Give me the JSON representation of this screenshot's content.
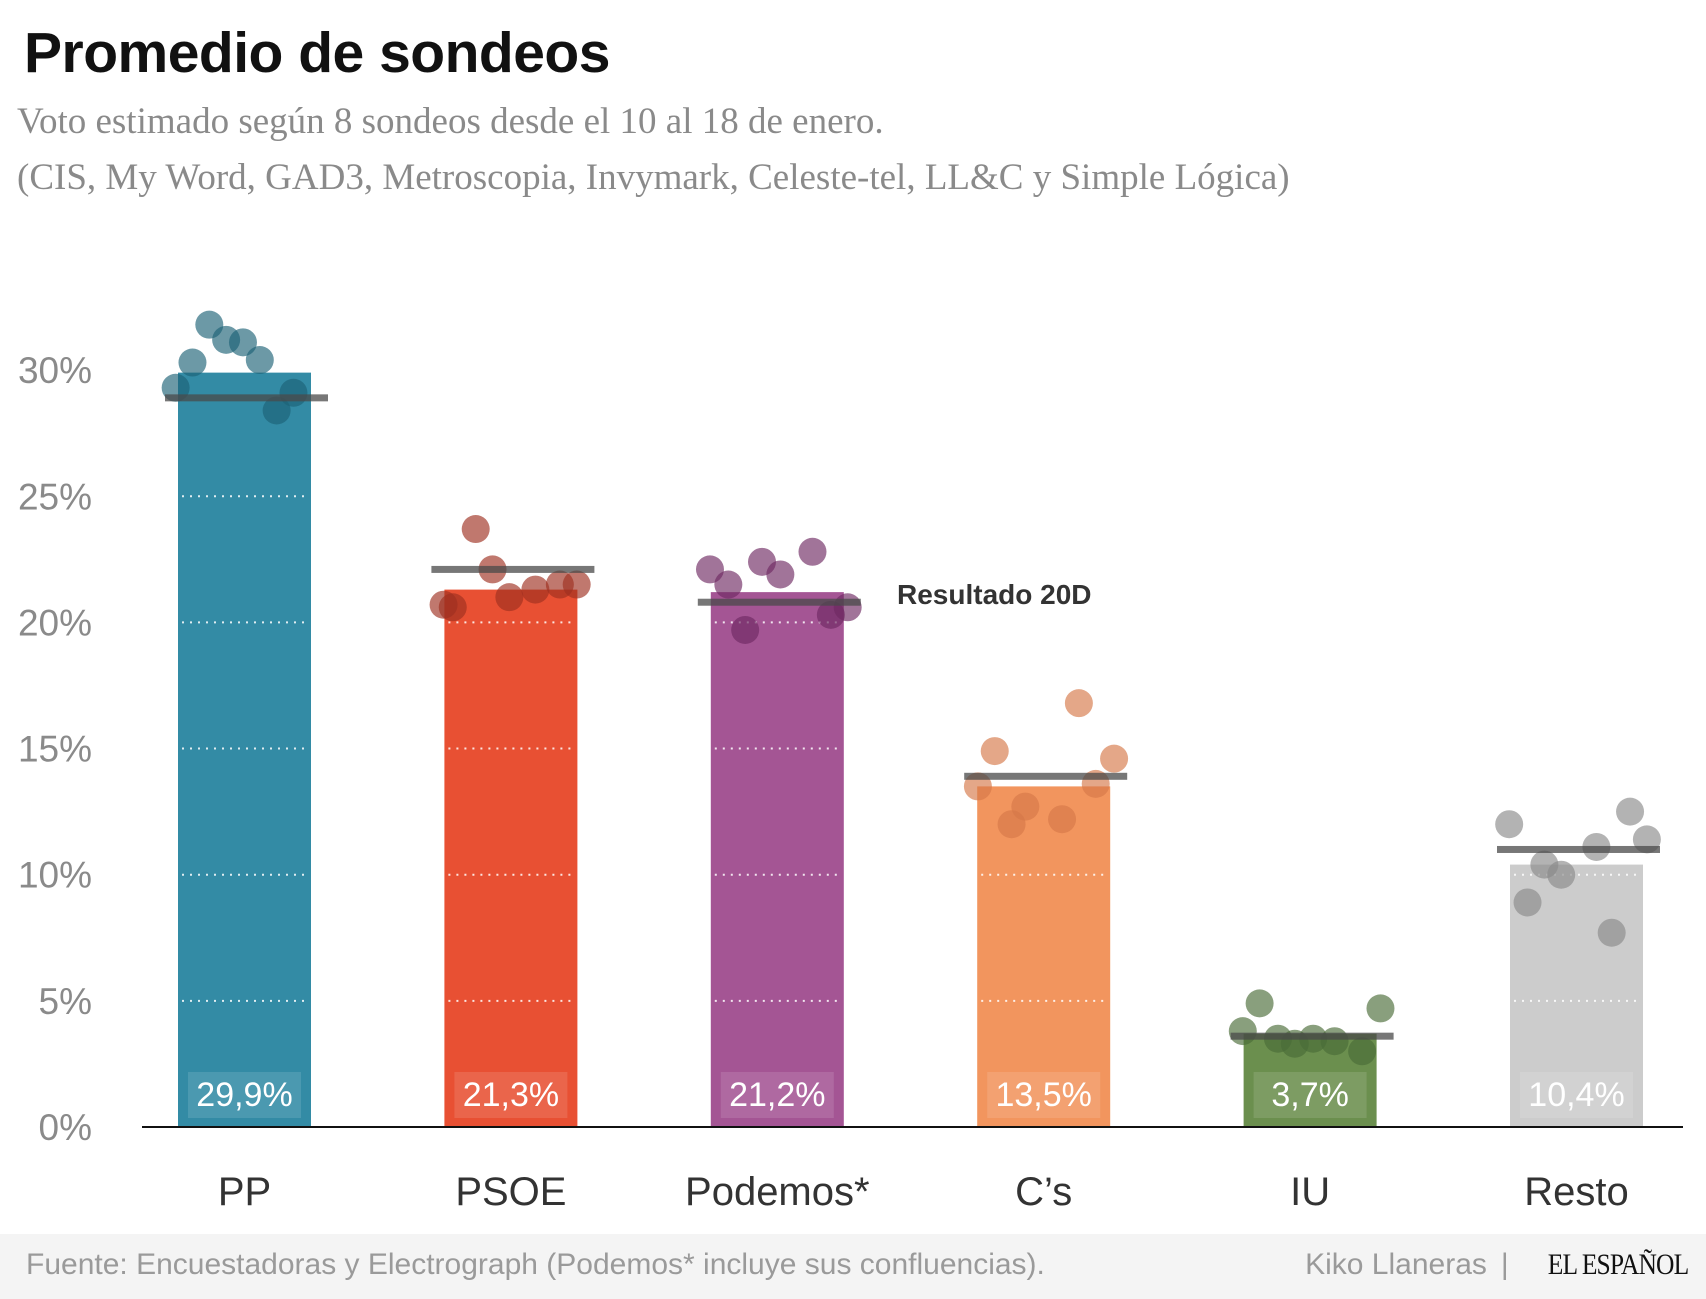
{
  "header": {
    "title": "Promedio de sondeos",
    "subtitle_line1": "Voto estimado según 8 sondeos desde el 10 al 18 de enero.",
    "subtitle_line2": "(CIS, My Word, GAD3, Metroscopia, Invymark, Celeste-tel, LL&C y Simple Lógica)"
  },
  "chart_data": {
    "type": "bar",
    "title": "Promedio de sondeos",
    "categories": [
      "PP",
      "PSOE",
      "Podemos*",
      "C’s",
      "IU",
      "Resto"
    ],
    "values": [
      29.9,
      21.3,
      21.2,
      13.5,
      3.7,
      10.4
    ],
    "value_labels": [
      "29,9%",
      "21,3%",
      "21,2%",
      "13,5%",
      "3,7%",
      "10,4%"
    ],
    "colors": [
      "#338ba5",
      "#e85033",
      "#a45594",
      "#f2955e",
      "#6b8f4e",
      "#cccccc"
    ],
    "dot_colors": [
      "#1d6377",
      "#9e3020",
      "#6e2a63",
      "#d57848",
      "#4a6b38",
      "#8a8a8a"
    ],
    "polls": [
      [
        31.8,
        30.3,
        31.2,
        31.1,
        30.4,
        29.1,
        29.3,
        28.4
      ],
      [
        23.7,
        22.1,
        20.7,
        20.6,
        21.0,
        21.3,
        21.5,
        21.5
      ],
      [
        22.1,
        21.5,
        22.4,
        21.9,
        22.8,
        19.7,
        20.3,
        20.6
      ],
      [
        14.9,
        16.8,
        14.6,
        13.5,
        13.6,
        12.7,
        12.0,
        12.2
      ],
      [
        4.9,
        4.7,
        3.8,
        3.5,
        3.3,
        3.5,
        3.4,
        3.0
      ],
      [
        12.0,
        12.5,
        11.4,
        10.4,
        11.1,
        10.0,
        8.9,
        7.7
      ]
    ],
    "result_20d": [
      28.9,
      22.1,
      20.8,
      13.9,
      3.6,
      11.0
    ],
    "result_label": "Resultado 20D",
    "yticks": [
      0,
      5,
      10,
      15,
      20,
      25,
      30
    ],
    "ytick_labels": [
      "0%",
      "5%",
      "10%",
      "15%",
      "20%",
      "25%",
      "30%"
    ],
    "ylim": [
      0,
      32
    ],
    "grid": "dotted white lines inside bars"
  },
  "footer": {
    "source": "Fuente: Encuestadoras y Electrograph (Podemos* incluye sus confluencias).",
    "author": "Kiko Llaneras",
    "separator": "|",
    "logo": "EL ESPAÑOL"
  }
}
